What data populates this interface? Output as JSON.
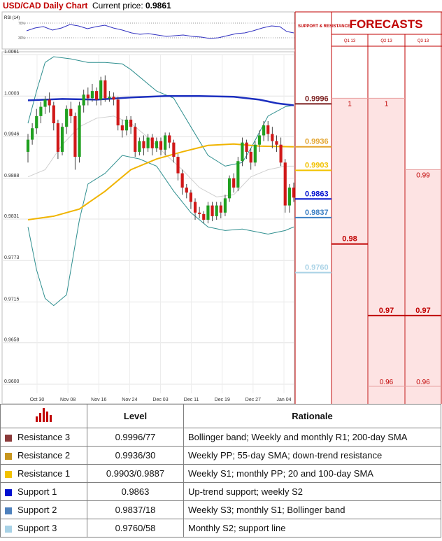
{
  "header": {
    "title": "USD/CAD Daily Chart",
    "price_label": "Current price:",
    "price_value": "0.9861"
  },
  "chart_data": {
    "type": "candlestick",
    "ylim": [
      0.96,
      1.0061
    ],
    "y_ticks": [
      "1.0061",
      "1.0003",
      "0.9946",
      "0.9888",
      "0.9831",
      "0.9773",
      "0.9715",
      "0.9658",
      "0.9600"
    ],
    "x_ticks": [
      "Oct 30",
      "Nov 08",
      "Nov 16",
      "Nov 24",
      "Dec 03",
      "Dec 11",
      "Dec 19",
      "Dec 27",
      "Jan 04"
    ],
    "rsi": {
      "label": "RSI (14)",
      "upper": "70%",
      "lower": "30%"
    },
    "candles": [
      [
        0.9925,
        0.9942,
        0.991,
        0.995
      ],
      [
        0.9942,
        0.9958,
        0.9935,
        0.9965
      ],
      [
        0.9958,
        0.9975,
        0.995,
        0.9985
      ],
      [
        0.9975,
        0.9988,
        0.9965,
        0.9995
      ],
      [
        0.9988,
        0.9998,
        0.9978,
        1.0003
      ],
      [
        0.9998,
        0.999,
        0.998,
        1.0008
      ],
      [
        0.999,
        0.9965,
        0.9955,
        0.9995
      ],
      [
        0.9965,
        0.9925,
        0.9915,
        0.997
      ],
      [
        0.9925,
        0.996,
        0.992,
        0.9965
      ],
      [
        0.996,
        0.9985,
        0.995,
        0.999
      ],
      [
        0.9985,
        0.9975,
        0.9965,
        0.9995
      ],
      [
        0.9975,
        0.9918,
        0.99,
        0.998
      ],
      [
        0.9918,
        0.999,
        0.991,
        0.9995
      ],
      [
        0.999,
        1.0005,
        0.998,
        1.0012
      ],
      [
        1.0005,
        1.0,
        0.999,
        1.0015
      ],
      [
        1.0,
        1.001,
        0.9995,
        1.002
      ],
      [
        1.001,
        0.9998,
        0.999,
        1.0015
      ],
      [
        0.9998,
        1.0025,
        0.999,
        1.003
      ],
      [
        1.0025,
        1.0,
        0.9995,
        1.0032
      ],
      [
        1.0,
        1.0002,
        0.9995,
        1.001
      ],
      [
        1.0002,
        0.9998,
        0.999,
        1.0008
      ],
      [
        0.9998,
        0.9962,
        0.9955,
        1.0002
      ],
      [
        0.9962,
        0.9955,
        0.9945,
        0.997
      ],
      [
        0.9955,
        0.997,
        0.9948,
        0.9975
      ],
      [
        0.997,
        0.996,
        0.995,
        0.9975
      ],
      [
        0.996,
        0.9925,
        0.9918,
        0.9965
      ],
      [
        0.9925,
        0.994,
        0.992,
        0.9945
      ],
      [
        0.994,
        0.993,
        0.992,
        0.9948
      ],
      [
        0.993,
        0.9945,
        0.9925,
        0.995
      ],
      [
        0.9945,
        0.993,
        0.992,
        0.995
      ],
      [
        0.993,
        0.994,
        0.9925,
        0.9945
      ],
      [
        0.994,
        0.9928,
        0.992,
        0.9945
      ],
      [
        0.9928,
        0.9948,
        0.992,
        0.9952
      ],
      [
        0.9948,
        0.9938,
        0.993,
        0.9952
      ],
      [
        0.9938,
        0.9918,
        0.991,
        0.9942
      ],
      [
        0.9918,
        0.9895,
        0.9885,
        0.9922
      ],
      [
        0.9895,
        0.9875,
        0.9865,
        0.99
      ],
      [
        0.9875,
        0.9868,
        0.986,
        0.988
      ],
      [
        0.9868,
        0.9855,
        0.9845,
        0.9872
      ],
      [
        0.9855,
        0.984,
        0.983,
        0.986
      ],
      [
        0.984,
        0.9838,
        0.9832,
        0.9848
      ],
      [
        0.9838,
        0.983,
        0.9825,
        0.9842
      ],
      [
        0.983,
        0.985,
        0.9825,
        0.9855
      ],
      [
        0.985,
        0.9835,
        0.9828,
        0.9855
      ],
      [
        0.9835,
        0.985,
        0.983,
        0.9855
      ],
      [
        0.985,
        0.984,
        0.9832,
        0.9855
      ],
      [
        0.984,
        0.986,
        0.9835,
        0.9865
      ],
      [
        0.986,
        0.9888,
        0.9855,
        0.9892
      ],
      [
        0.9888,
        0.9875,
        0.9868,
        0.9895
      ],
      [
        0.9875,
        0.9912,
        0.987,
        0.9918
      ],
      [
        0.9912,
        0.9938,
        0.9905,
        0.9945
      ],
      [
        0.9938,
        0.9925,
        0.9915,
        0.9942
      ],
      [
        0.9925,
        0.991,
        0.99,
        0.993
      ],
      [
        0.991,
        0.9935,
        0.9905,
        0.994
      ],
      [
        0.9935,
        0.9948,
        0.9925,
        0.9955
      ],
      [
        0.9948,
        0.9962,
        0.994,
        0.9968
      ],
      [
        0.9962,
        0.995,
        0.994,
        0.9968
      ],
      [
        0.995,
        0.994,
        0.993,
        0.996
      ],
      [
        0.994,
        0.9935,
        0.9925,
        0.9948
      ],
      [
        0.9935,
        0.991,
        0.9905,
        0.9945
      ],
      [
        0.991,
        0.985,
        0.984,
        0.9915
      ],
      [
        0.985,
        0.9875,
        0.984,
        0.988
      ],
      [
        0.9875,
        0.9861,
        0.9855,
        0.9882
      ]
    ],
    "sma55": [
      [
        0,
        0.983
      ],
      [
        6,
        0.9835
      ],
      [
        12,
        0.9845
      ],
      [
        18,
        0.987
      ],
      [
        24,
        0.99
      ],
      [
        30,
        0.9915
      ],
      [
        36,
        0.9925
      ],
      [
        42,
        0.9934
      ],
      [
        48,
        0.9936
      ],
      [
        54,
        0.9933
      ],
      [
        62,
        0.9932
      ]
    ],
    "sma200": [
      [
        0,
        0.9997
      ],
      [
        8,
        0.9999
      ],
      [
        16,
        0.9998
      ],
      [
        24,
        1.0001
      ],
      [
        32,
        1.0003
      ],
      [
        40,
        1.0003
      ],
      [
        48,
        1.0002
      ],
      [
        54,
        0.9998
      ],
      [
        58,
        0.9993
      ],
      [
        62,
        0.999
      ]
    ],
    "bollinger_upper": [
      [
        0,
        0.9965
      ],
      [
        2,
        1.001
      ],
      [
        4,
        1.005
      ],
      [
        6,
        1.0058
      ],
      [
        10,
        1.0055
      ],
      [
        14,
        1.005
      ],
      [
        18,
        1.005
      ],
      [
        22,
        1.0048
      ],
      [
        24,
        1.004
      ],
      [
        30,
        1.001
      ],
      [
        34,
        1.0
      ],
      [
        38,
        0.996
      ],
      [
        42,
        0.992
      ],
      [
        46,
        0.9905
      ],
      [
        50,
        0.991
      ],
      [
        52,
        0.993
      ],
      [
        56,
        0.9975
      ],
      [
        60,
        0.9988
      ],
      [
        62,
        0.999
      ]
    ],
    "bollinger_lower": [
      [
        0,
        0.982
      ],
      [
        2,
        0.976
      ],
      [
        4,
        0.972
      ],
      [
        6,
        0.971
      ],
      [
        9,
        0.9725
      ],
      [
        12,
        0.983
      ],
      [
        14,
        0.988
      ],
      [
        18,
        0.9895
      ],
      [
        22,
        0.992
      ],
      [
        26,
        0.9915
      ],
      [
        30,
        0.9905
      ],
      [
        34,
        0.987
      ],
      [
        38,
        0.984
      ],
      [
        42,
        0.982
      ],
      [
        46,
        0.9815
      ],
      [
        50,
        0.9817
      ],
      [
        56,
        0.981
      ],
      [
        60,
        0.9815
      ],
      [
        62,
        0.982
      ]
    ],
    "bollinger_mid": [
      [
        0,
        0.989
      ],
      [
        4,
        0.99
      ],
      [
        8,
        0.9935
      ],
      [
        12,
        0.996
      ],
      [
        16,
        0.9972
      ],
      [
        20,
        0.9975
      ],
      [
        24,
        0.9965
      ],
      [
        28,
        0.9945
      ],
      [
        32,
        0.9922
      ],
      [
        36,
        0.99
      ],
      [
        40,
        0.9875
      ],
      [
        44,
        0.9862
      ],
      [
        48,
        0.9865
      ],
      [
        52,
        0.989
      ],
      [
        56,
        0.99
      ],
      [
        60,
        0.9905
      ],
      [
        62,
        0.9905
      ]
    ],
    "levels": [
      {
        "label": "0.9996",
        "value": 0.9996,
        "color": "#7b1f1f"
      },
      {
        "label": "0.9936",
        "value": 0.9936,
        "color": "#e3a32a"
      },
      {
        "label": "0.9903",
        "value": 0.9903,
        "color": "#f2c200"
      },
      {
        "label": "0.9863",
        "value": 0.9863,
        "color": "#0010d0"
      },
      {
        "label": "0.9837",
        "value": 0.9837,
        "color": "#3b7fc4"
      },
      {
        "label": "0.9760",
        "value": 0.976,
        "color": "#a8d2e6"
      }
    ],
    "side_header": "SUPPORT & RESISTANCE",
    "forecasts": {
      "title": "FORECASTS",
      "columns": [
        "Q1 13",
        "Q2 13",
        "Q3 13"
      ],
      "values": [
        {
          "max_label": "1",
          "max": 1.0,
          "min_label": "0.98",
          "min": 0.98
        },
        {
          "max_label": "1",
          "max": 1.0,
          "min_label": "0.97",
          "min": 0.97,
          "low_label": "0.96",
          "low": 0.96
        },
        {
          "max_label": "0.99",
          "max": 0.99,
          "min_label": "0.97",
          "min": 0.97,
          "low_label": "0.96",
          "low": 0.96
        }
      ]
    }
  },
  "table": {
    "col_level": "Level",
    "col_rationale": "Rationale",
    "rows": [
      {
        "name": "Resistance 3",
        "level": "0.9996/77",
        "rationale": "Bollinger band; Weekly and monthly R1; 200-day SMA",
        "color": "#8b3a3a"
      },
      {
        "name": "Resistance 2",
        "level": "0.9936/30",
        "rationale": "Weekly PP; 55-day SMA; down-trend resistance",
        "color": "#c8961e"
      },
      {
        "name": "Resistance 1",
        "level": "0.9903/0.9887",
        "rationale": "Weekly S1; monthly PP; 20 and 100-day SMA",
        "color": "#f2c200"
      },
      {
        "name": "Support 1",
        "level": "0.9863",
        "rationale": "Up-trend support; weekly S2",
        "color": "#0010d0"
      },
      {
        "name": "Support 2",
        "level": "0.9837/18",
        "rationale": "Weekly S3; monthly S1; Bollinger band",
        "color": "#4f81bd"
      },
      {
        "name": "Support 3",
        "level": "0.9760/58",
        "rationale": "Monthly S2; support line",
        "color": "#a8d2e6"
      }
    ]
  }
}
